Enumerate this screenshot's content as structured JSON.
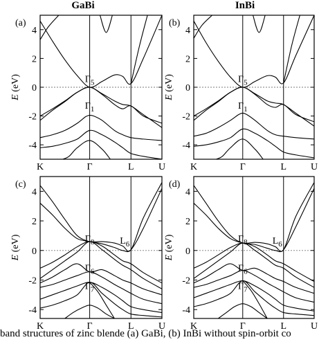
{
  "column_titles": [
    "GaBi",
    "InBi"
  ],
  "caption": "band structures of zinc blende (a) GaBi, (b) InBi without spin-orbit co",
  "chart_data": [
    {
      "type": "line",
      "panel_label": "(a)",
      "ylabel": "E (eV)",
      "ylim": [
        -5,
        5
      ],
      "yticks": [
        -4,
        -2,
        0,
        2,
        4
      ],
      "x_tick_labels": [
        "K",
        "Γ",
        "L",
        "U"
      ],
      "x_ticks": [
        0,
        1.2,
        2.2,
        2.95
      ],
      "vertical_lines_at": [
        1.2,
        2.2
      ],
      "fermi_level": 0,
      "annotations": [
        {
          "main": "Γ",
          "sub": "5",
          "x": 1.2,
          "y": 0.35
        },
        {
          "main": "Γ",
          "sub": "1",
          "x": 1.2,
          "y": -1.5
        }
      ],
      "bands": [
        {
          "x": [
            0,
            0.3,
            0.6,
            0.9,
            1.2,
            1.5,
            1.8,
            2.0,
            2.2,
            2.5,
            2.95
          ],
          "y": [
            4.6,
            3.2,
            1.9,
            0.8,
            0.0,
            0.4,
            0.85,
            0.75,
            0.25,
            2.0,
            5.0
          ]
        },
        {
          "x": [
            0,
            0.2,
            0.45
          ],
          "y": [
            3.3,
            4.2,
            5.0
          ]
        },
        {
          "x": [
            1.45,
            1.6,
            1.75
          ],
          "y": [
            5.0,
            3.8,
            5.0
          ]
        },
        {
          "x": [
            2.2,
            2.4,
            2.6
          ],
          "y": [
            0.25,
            2.8,
            5.0
          ]
        },
        {
          "x": [
            0,
            0.3,
            0.6,
            0.9,
            1.2,
            1.5,
            1.8,
            2.0,
            2.2,
            2.5,
            2.95
          ],
          "y": [
            -2.0,
            -1.5,
            -0.95,
            -0.35,
            0.0,
            -0.45,
            -0.95,
            -1.2,
            -1.3,
            -1.9,
            -2.8
          ]
        },
        {
          "x": [
            0,
            0.3,
            0.6,
            0.9,
            1.2,
            1.5,
            1.8,
            2.0,
            2.2,
            2.5,
            2.95
          ],
          "y": [
            -2.3,
            -1.6,
            -1.0,
            -0.35,
            0.0,
            -0.5,
            -1.2,
            -1.5,
            -1.3,
            -2.0,
            -2.5
          ]
        },
        {
          "x": [
            0,
            0.3,
            0.6,
            0.9,
            1.1,
            1.2,
            1.3,
            1.5,
            1.8,
            2.0,
            2.2,
            2.5,
            2.95
          ],
          "y": [
            -3.5,
            -3.3,
            -3.0,
            -2.5,
            -2.05,
            -1.95,
            -2.0,
            -2.3,
            -3.0,
            -3.3,
            -3.5,
            -3.6,
            -3.7
          ]
        },
        {
          "x": [
            0,
            0.3,
            0.6,
            0.9,
            1.2,
            1.5,
            1.8,
            2.0,
            2.2,
            2.5,
            2.95
          ],
          "y": [
            -4.2,
            -4.1,
            -3.9,
            -3.6,
            -3.0,
            -3.3,
            -3.8,
            -4.2,
            -4.6,
            -4.8,
            -5.0
          ]
        },
        {
          "x": [
            0.55,
            0.7,
            0.9,
            1.2,
            1.5,
            1.7
          ],
          "y": [
            -5.0,
            -4.8,
            -4.2,
            -3.7,
            -4.3,
            -5.0
          ]
        }
      ]
    },
    {
      "type": "line",
      "panel_label": "(b)",
      "ylabel": "E (eV)",
      "ylim": [
        -5,
        5
      ],
      "yticks": [
        -4,
        -2,
        0,
        2,
        4
      ],
      "x_tick_labels": [
        "K",
        "Γ",
        "L",
        "U"
      ],
      "x_ticks": [
        0,
        1.2,
        2.2,
        2.95
      ],
      "vertical_lines_at": [
        1.2,
        2.2
      ],
      "fermi_level": 0,
      "annotations": [
        {
          "main": "Γ",
          "sub": "5",
          "x": 1.2,
          "y": 0.35
        },
        {
          "main": "Γ",
          "sub": "1",
          "x": 1.2,
          "y": -1.5
        }
      ],
      "bands": [
        {
          "x": [
            0,
            0.3,
            0.6,
            0.9,
            1.2,
            1.5,
            1.8,
            2.0,
            2.2,
            2.5,
            2.95
          ],
          "y": [
            4.6,
            3.1,
            1.8,
            0.7,
            0.0,
            0.4,
            0.8,
            0.7,
            0.3,
            2.2,
            5.0
          ]
        },
        {
          "x": [
            0,
            0.2,
            0.45
          ],
          "y": [
            3.4,
            4.3,
            5.0
          ]
        },
        {
          "x": [
            1.45,
            1.6,
            1.75
          ],
          "y": [
            5.0,
            3.8,
            5.0
          ]
        },
        {
          "x": [
            2.2,
            2.4,
            2.6
          ],
          "y": [
            0.3,
            2.9,
            5.0
          ]
        },
        {
          "x": [
            0,
            0.3,
            0.6,
            0.9,
            1.2,
            1.5,
            1.8,
            2.0,
            2.2,
            2.5,
            2.95
          ],
          "y": [
            -2.0,
            -1.5,
            -0.95,
            -0.35,
            0.0,
            -0.45,
            -0.95,
            -1.1,
            -1.2,
            -1.8,
            -2.7
          ]
        },
        {
          "x": [
            0,
            0.3,
            0.6,
            0.9,
            1.2,
            1.5,
            1.8,
            2.0,
            2.2,
            2.5,
            2.95
          ],
          "y": [
            -2.3,
            -1.6,
            -1.0,
            -0.35,
            0.0,
            -0.5,
            -1.2,
            -1.4,
            -1.2,
            -1.9,
            -2.4
          ]
        },
        {
          "x": [
            0,
            0.3,
            0.6,
            0.9,
            1.1,
            1.2,
            1.3,
            1.5,
            1.8,
            2.0,
            2.2,
            2.5,
            2.95
          ],
          "y": [
            -3.4,
            -3.2,
            -2.8,
            -2.3,
            -1.9,
            -1.8,
            -1.9,
            -2.3,
            -3.0,
            -3.3,
            -3.4,
            -3.5,
            -3.6
          ]
        },
        {
          "x": [
            0,
            0.3,
            0.6,
            0.9,
            1.2,
            1.5,
            1.8,
            2.0,
            2.2,
            2.5,
            2.95
          ],
          "y": [
            -4.1,
            -4.0,
            -3.8,
            -3.5,
            -2.9,
            -3.2,
            -3.7,
            -4.1,
            -4.5,
            -4.7,
            -4.9
          ]
        },
        {
          "x": [
            0.55,
            0.7,
            0.9,
            1.2,
            1.5,
            1.7
          ],
          "y": [
            -5.0,
            -4.8,
            -4.2,
            -3.6,
            -4.3,
            -5.0
          ]
        }
      ]
    },
    {
      "type": "line",
      "panel_label": "(c)",
      "ylabel": "E (eV)",
      "ylim": [
        -4.6,
        5
      ],
      "yticks": [
        -4,
        -2,
        0,
        2,
        4
      ],
      "x_tick_labels": [
        "K",
        "Γ",
        "L",
        "U"
      ],
      "x_ticks": [
        0,
        1.2,
        2.2,
        2.95
      ],
      "vertical_lines_at": [
        1.2,
        2.2
      ],
      "fermi_level": 0,
      "annotations": [
        {
          "main": "Γ",
          "sub": "8",
          "x": 1.2,
          "y": 0.6
        },
        {
          "main": "L",
          "sub": "6",
          "x": 2.2,
          "y": 0.45
        },
        {
          "main": "Γ",
          "sub": "6",
          "x": 1.2,
          "y": -1.4
        },
        {
          "main": "Γ",
          "sub": "7",
          "x": 1.2,
          "y": -2.6
        }
      ],
      "bands": [
        {
          "x": [
            0,
            0.3,
            0.6,
            0.9,
            1.2,
            1.5,
            1.8,
            2.0,
            2.2,
            2.5,
            2.95
          ],
          "y": [
            4.4,
            3.3,
            2.1,
            1.0,
            0.6,
            0.6,
            0.5,
            0.3,
            0.05,
            2.2,
            4.6
          ]
        },
        {
          "x": [
            0,
            0.3,
            0.6,
            0.9,
            1.2,
            1.5,
            1.8,
            2.0,
            2.2,
            2.5,
            2.95
          ],
          "y": [
            3.2,
            2.4,
            1.5,
            0.8,
            0.6,
            0.45,
            0.2,
            0.0,
            0.05,
            1.5,
            4.2
          ]
        },
        {
          "x": [
            0,
            0.3,
            0.6,
            0.9,
            1.2,
            1.5,
            1.8,
            2.0,
            2.2,
            2.5,
            2.95
          ],
          "y": [
            -1.2,
            -0.8,
            -0.3,
            0.25,
            0.6,
            0.3,
            -0.3,
            -0.7,
            -0.9,
            -1.5,
            -2.2
          ]
        },
        {
          "x": [
            0,
            0.3,
            0.6,
            0.9,
            1.2,
            1.5,
            1.8,
            2.0,
            2.2,
            2.5,
            2.95
          ],
          "y": [
            -1.9,
            -1.3,
            -0.7,
            -0.1,
            0.6,
            0.05,
            -0.6,
            -1.0,
            -1.3,
            -1.9,
            -2.6
          ]
        },
        {
          "x": [
            0,
            0.3,
            0.6,
            0.9,
            1.2,
            1.5,
            1.8,
            2.0,
            2.2,
            2.5,
            2.95
          ],
          "y": [
            -2.2,
            -1.8,
            -1.3,
            -0.9,
            -1.45,
            -1.3,
            -1.7,
            -2.0,
            -2.2,
            -2.6,
            -3.0
          ]
        },
        {
          "x": [
            0,
            0.3,
            0.6,
            0.9,
            1.2,
            1.5,
            1.8,
            2.0,
            2.2,
            2.5,
            2.95
          ],
          "y": [
            -2.5,
            -2.3,
            -2.0,
            -1.7,
            -1.45,
            -1.8,
            -2.3,
            -2.6,
            -2.9,
            -3.3,
            -3.6
          ]
        },
        {
          "x": [
            0,
            0.3,
            0.6,
            0.9,
            1.2,
            1.5,
            1.8,
            2.0,
            2.2,
            2.5,
            2.95
          ],
          "y": [
            -3.3,
            -3.0,
            -2.7,
            -2.4,
            -2.15,
            -2.5,
            -3.0,
            -3.4,
            -3.8,
            -4.0,
            -4.2
          ]
        },
        {
          "x": [
            0,
            0.3,
            0.6,
            0.9,
            1.2,
            1.5,
            1.8,
            2.0,
            2.2,
            2.5,
            2.95
          ],
          "y": [
            -3.9,
            -3.7,
            -3.4,
            -3.0,
            -2.15,
            -2.9,
            -3.6,
            -4.0,
            -4.3,
            -4.4,
            -4.5
          ]
        },
        {
          "x": [
            0.6,
            0.8,
            1.0,
            1.2,
            1.4,
            1.6,
            1.8
          ],
          "y": [
            -4.6,
            -4.2,
            -3.9,
            -3.7,
            -3.9,
            -4.3,
            -4.6
          ]
        },
        {
          "x": [
            1.2,
            1.4,
            1.6,
            1.8
          ],
          "y": [
            -2.15,
            -2.8,
            -3.7,
            -4.6
          ]
        }
      ]
    },
    {
      "type": "line",
      "panel_label": "(d)",
      "ylabel": "E (eV)",
      "ylim": [
        -4.6,
        5
      ],
      "yticks": [
        -4,
        -2,
        0,
        2,
        4
      ],
      "x_tick_labels": [
        "K",
        "Γ",
        "L",
        "U"
      ],
      "x_ticks": [
        0,
        1.2,
        2.2,
        2.95
      ],
      "vertical_lines_at": [
        1.2,
        2.2
      ],
      "fermi_level": 0,
      "annotations": [
        {
          "main": "Γ",
          "sub": "8",
          "x": 1.2,
          "y": 0.6
        },
        {
          "main": "L",
          "sub": "6",
          "x": 2.2,
          "y": 0.45
        },
        {
          "main": "Γ",
          "sub": "6",
          "x": 1.2,
          "y": -1.4
        },
        {
          "main": "Γ",
          "sub": "7",
          "x": 1.2,
          "y": -2.6
        }
      ],
      "bands": [
        {
          "x": [
            0,
            0.3,
            0.6,
            0.9,
            1.2,
            1.5,
            1.8,
            2.0,
            2.2,
            2.5,
            2.95
          ],
          "y": [
            4.4,
            3.2,
            2.0,
            1.0,
            0.5,
            0.55,
            0.45,
            0.25,
            0.05,
            2.3,
            4.6
          ]
        },
        {
          "x": [
            0,
            0.3,
            0.6,
            0.9,
            1.2,
            1.5,
            1.8,
            2.0,
            2.2,
            2.5,
            2.95
          ],
          "y": [
            3.2,
            2.4,
            1.5,
            0.8,
            0.5,
            0.4,
            0.15,
            0.0,
            0.05,
            1.6,
            4.2
          ]
        },
        {
          "x": [
            0,
            0.3,
            0.6,
            0.9,
            1.2,
            1.5,
            1.8,
            2.0,
            2.2,
            2.5,
            2.95
          ],
          "y": [
            -1.2,
            -0.8,
            -0.3,
            0.2,
            0.5,
            0.25,
            -0.3,
            -0.7,
            -0.9,
            -1.4,
            -2.1
          ]
        },
        {
          "x": [
            0,
            0.3,
            0.6,
            0.9,
            1.2,
            1.5,
            1.8,
            2.0,
            2.2,
            2.5,
            2.95
          ],
          "y": [
            -1.9,
            -1.3,
            -0.7,
            -0.1,
            0.5,
            0.0,
            -0.6,
            -1.0,
            -1.2,
            -1.8,
            -2.5
          ]
        },
        {
          "x": [
            0,
            0.3,
            0.6,
            0.9,
            1.2,
            1.5,
            1.8,
            2.0,
            2.2,
            2.5,
            2.95
          ],
          "y": [
            -2.2,
            -1.8,
            -1.3,
            -0.9,
            -1.35,
            -1.2,
            -1.6,
            -1.9,
            -2.1,
            -2.5,
            -2.9
          ]
        },
        {
          "x": [
            0,
            0.3,
            0.6,
            0.9,
            1.2,
            1.5,
            1.8,
            2.0,
            2.2,
            2.5,
            2.95
          ],
          "y": [
            -2.5,
            -2.3,
            -2.0,
            -1.7,
            -1.35,
            -1.7,
            -2.2,
            -2.5,
            -2.8,
            -3.2,
            -3.5
          ]
        },
        {
          "x": [
            0,
            0.3,
            0.6,
            0.9,
            1.2,
            1.5,
            1.8,
            2.0,
            2.2,
            2.5,
            2.95
          ],
          "y": [
            -3.2,
            -2.9,
            -2.6,
            -2.3,
            -2.05,
            -2.4,
            -2.9,
            -3.3,
            -3.7,
            -3.9,
            -4.1
          ]
        },
        {
          "x": [
            0,
            0.3,
            0.6,
            0.9,
            1.2,
            1.5,
            1.8,
            2.0,
            2.2,
            2.5,
            2.95
          ],
          "y": [
            -3.8,
            -3.6,
            -3.3,
            -2.9,
            -2.05,
            -2.8,
            -3.5,
            -3.9,
            -4.2,
            -4.3,
            -4.4
          ]
        },
        {
          "x": [
            0.6,
            0.8,
            1.0,
            1.2,
            1.4,
            1.6,
            1.8
          ],
          "y": [
            -4.6,
            -4.2,
            -3.8,
            -3.6,
            -3.8,
            -4.2,
            -4.6
          ]
        },
        {
          "x": [
            1.2,
            1.4,
            1.6,
            1.8
          ],
          "y": [
            -2.05,
            -2.7,
            -3.6,
            -4.6
          ]
        }
      ]
    }
  ]
}
